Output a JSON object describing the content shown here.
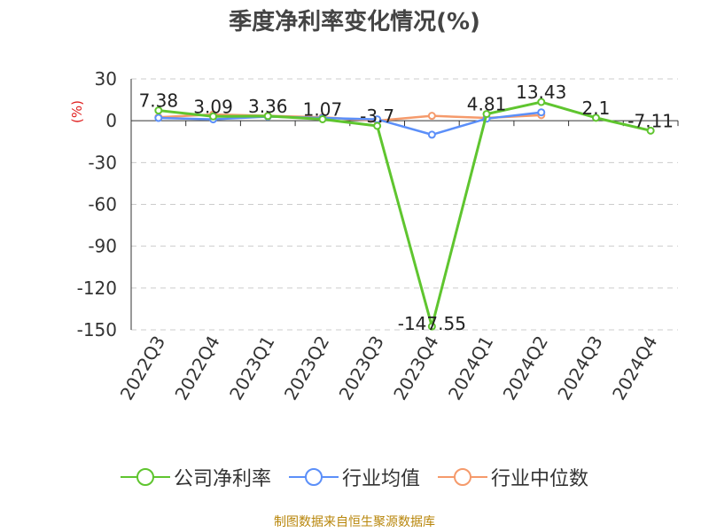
{
  "chart_data": {
    "type": "line",
    "title": "季度净利率变化情况(%)",
    "ylabel": "(%)",
    "categories": [
      "2022Q3",
      "2022Q4",
      "2023Q1",
      "2023Q2",
      "2023Q3",
      "2023Q4",
      "2024Q1",
      "2024Q2",
      "2024Q3",
      "2024Q4"
    ],
    "ylim": [
      -150,
      30
    ],
    "yticks": [
      30,
      0,
      -30,
      -60,
      -90,
      -120,
      -150
    ],
    "series": [
      {
        "name": "公司净利率",
        "color": "#5fc52f",
        "values": [
          7.38,
          3.09,
          3.36,
          1.07,
          -3.7,
          -147.55,
          4.81,
          13.43,
          2.1,
          -7.11
        ],
        "labels": [
          "7.38",
          "3.09",
          "3.36",
          "1.07",
          "-3.7",
          "-147.55",
          "4.81",
          "13.43",
          "2.1",
          "-7.11"
        ]
      },
      {
        "name": "行业均值",
        "color": "#5b8ff9",
        "values": [
          2.0,
          1.0,
          3.0,
          2.0,
          1.0,
          -10.0,
          1.5,
          6.0,
          null,
          null
        ]
      },
      {
        "name": "行业中位数",
        "color": "#f59a6b",
        "values": [
          2.5,
          4.5,
          3.5,
          2.5,
          0.0,
          3.5,
          2.0,
          4.0,
          null,
          null
        ]
      }
    ],
    "grid": true,
    "legend_position": "bottom"
  },
  "footer": {
    "source": "制图数据来自恒生聚源数据库"
  }
}
